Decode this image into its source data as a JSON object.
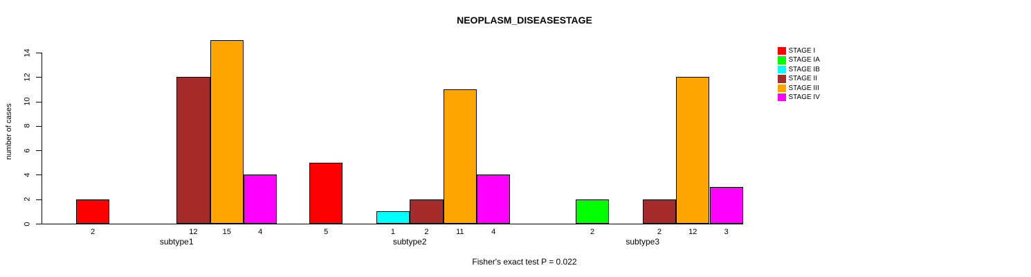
{
  "chart_data": {
    "type": "bar",
    "title": "NEOPLASM_DISEASESTAGE",
    "xlabel": "",
    "ylabel": "number of cases",
    "annotation": "Fisher's exact test P = 0.022",
    "ylim": [
      0,
      14
    ],
    "yticks": [
      0,
      2,
      4,
      6,
      8,
      10,
      12,
      14
    ],
    "grid": false,
    "legend_position": "right",
    "categories": [
      "subtype1",
      "subtype2",
      "subtype3"
    ],
    "series": [
      {
        "name": "STAGE I",
        "color": "#FF0000",
        "values": [
          2,
          5,
          0
        ]
      },
      {
        "name": "STAGE IA",
        "color": "#00FF00",
        "values": [
          0,
          0,
          2
        ]
      },
      {
        "name": "STAGE IB",
        "color": "#00FFFF",
        "values": [
          0,
          1,
          0
        ]
      },
      {
        "name": "STAGE II",
        "color": "#A52A2A",
        "values": [
          12,
          2,
          2
        ]
      },
      {
        "name": "STAGE III",
        "color": "#FFA500",
        "values": [
          15,
          11,
          12
        ]
      },
      {
        "name": "STAGE IV",
        "color": "#FF00FF",
        "values": [
          4,
          4,
          3
        ]
      }
    ],
    "bar_value_labels_shown": true,
    "axis_color": "#000000",
    "background_color": "#FFFFFF"
  }
}
